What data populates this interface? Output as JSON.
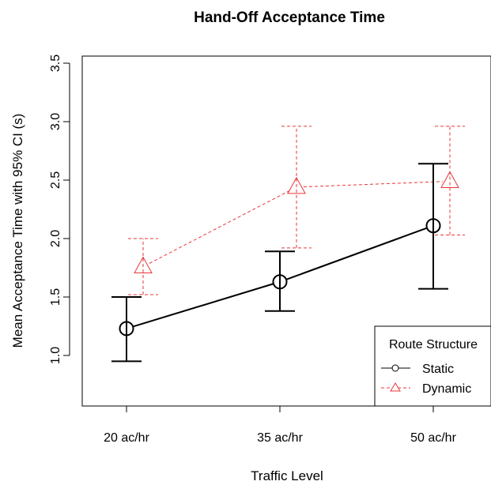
{
  "chart_data": {
    "type": "line",
    "title": "Hand-Off Acceptance Time",
    "xlabel": "Traffic Level",
    "ylabel": "Mean Acceptance Time with 95% CI (s)",
    "categories": [
      "20 ac/hr",
      "35 ac/hr",
      "50 ac/hr"
    ],
    "ylim": [
      0.6,
      3.6
    ],
    "yticks": [
      1.0,
      1.5,
      2.0,
      2.5,
      3.0,
      3.5
    ],
    "ytick_labels": [
      "1.0",
      "1.5",
      "2.0",
      "2.5",
      "3.0",
      "3.5"
    ],
    "grid": false,
    "legend": {
      "title": "Route Structure",
      "position": "bottom-right"
    },
    "series": [
      {
        "name": "Static",
        "color": "#000000",
        "marker": "circle",
        "line_style": "solid",
        "values": [
          1.23,
          1.63,
          2.11
        ],
        "ci_lower": [
          0.95,
          1.38,
          1.57
        ],
        "ci_upper": [
          1.5,
          1.89,
          2.64
        ]
      },
      {
        "name": "Dynamic",
        "color": "#e8363a",
        "marker": "triangle",
        "line_style": "dashed",
        "values": [
          1.76,
          2.44,
          2.49
        ],
        "ci_lower": [
          1.52,
          1.92,
          2.03
        ],
        "ci_upper": [
          2.0,
          2.96,
          2.96
        ]
      }
    ]
  }
}
